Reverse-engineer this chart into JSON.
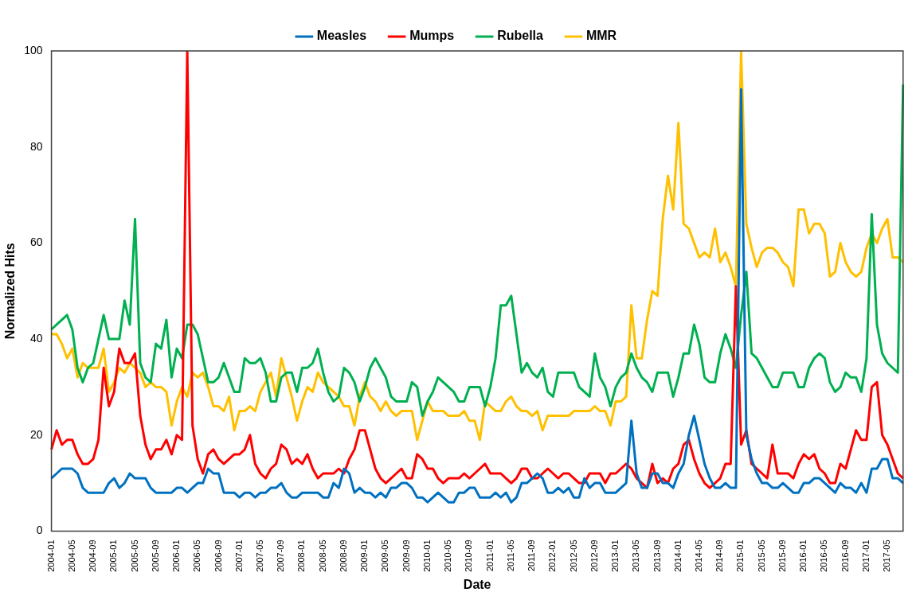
{
  "chart_data": {
    "type": "line",
    "xlabel": "Date",
    "ylabel": "Normalized Hits",
    "categories": [
      "2004-01",
      null,
      null,
      null,
      "2004-05",
      null,
      null,
      null,
      "2004-09",
      null,
      null,
      null,
      "2005-01",
      null,
      null,
      null,
      "2005-05",
      null,
      null,
      null,
      "2005-09",
      null,
      null,
      null,
      "2006-01",
      null,
      null,
      null,
      "2006-05",
      null,
      null,
      null,
      "2006-09",
      null,
      null,
      null,
      "2007-01",
      null,
      null,
      null,
      "2007-05",
      null,
      null,
      null,
      "2007-09",
      null,
      null,
      null,
      "2008-01",
      null,
      null,
      null,
      "2008-05",
      null,
      null,
      null,
      "2008-09",
      null,
      null,
      null,
      "2009-01",
      null,
      null,
      null,
      "2009-05",
      null,
      null,
      null,
      "2009-09",
      null,
      null,
      null,
      "2010-01",
      null,
      null,
      null,
      "2010-05",
      null,
      null,
      null,
      "2010-09",
      null,
      null,
      null,
      "2011-01",
      null,
      null,
      null,
      "2011-05",
      null,
      null,
      null,
      "2011-09",
      null,
      null,
      null,
      "2012-01",
      null,
      null,
      null,
      "2012-05",
      null,
      null,
      null,
      "2012-09",
      null,
      null,
      null,
      "2013-01",
      null,
      null,
      null,
      "2013-05",
      null,
      null,
      null,
      "2013-09",
      null,
      null,
      null,
      "2014-01",
      null,
      null,
      null,
      "2014-05",
      null,
      null,
      null,
      "2014-09",
      null,
      null,
      null,
      "2015-01",
      null,
      null,
      null,
      "2015-05",
      null,
      null,
      null,
      "2015-09",
      null,
      null,
      null,
      "2016-01",
      null,
      null,
      null,
      "2016-05",
      null,
      null,
      null,
      "2016-09",
      null,
      null,
      null,
      "2017-01",
      null,
      null,
      null,
      "2017-05",
      null,
      null,
      null
    ],
    "series": [
      {
        "name": "Measles",
        "color": "#0070c0",
        "values": [
          11,
          12,
          13,
          13,
          13,
          12,
          9,
          8,
          8,
          8,
          8,
          10,
          11,
          9,
          10,
          12,
          11,
          11,
          11,
          9,
          8,
          8,
          8,
          8,
          9,
          9,
          8,
          9,
          10,
          10,
          13,
          12,
          12,
          8,
          8,
          8,
          7,
          8,
          8,
          7,
          8,
          8,
          9,
          9,
          10,
          8,
          7,
          7,
          8,
          8,
          8,
          8,
          7,
          7,
          10,
          9,
          13,
          12,
          8,
          9,
          8,
          8,
          7,
          8,
          7,
          9,
          9,
          10,
          10,
          9,
          7,
          7,
          6,
          7,
          8,
          7,
          6,
          6,
          8,
          8,
          9,
          9,
          7,
          7,
          7,
          8,
          7,
          8,
          6,
          7,
          10,
          10,
          11,
          12,
          11,
          8,
          8,
          9,
          8,
          9,
          7,
          7,
          11,
          9,
          10,
          10,
          8,
          8,
          8,
          9,
          10,
          23,
          12,
          9,
          9,
          12,
          12,
          10,
          10,
          9,
          12,
          14,
          20,
          24,
          19,
          14,
          11,
          9,
          9,
          10,
          9,
          9,
          92,
          20,
          15,
          12,
          10,
          10,
          9,
          9,
          10,
          9,
          8,
          8,
          10,
          10,
          11,
          11,
          10,
          9,
          8,
          10,
          9,
          9,
          8,
          10,
          8,
          13,
          13,
          15,
          15,
          11,
          11,
          10
        ]
      },
      {
        "name": "Mumps",
        "color": "#ff0000",
        "values": [
          17,
          21,
          18,
          19,
          19,
          16,
          14,
          14,
          15,
          19,
          34,
          26,
          29,
          38,
          35,
          35,
          37,
          24,
          18,
          15,
          17,
          17,
          19,
          16,
          20,
          19,
          100,
          22,
          15,
          12,
          16,
          17,
          15,
          14,
          15,
          16,
          16,
          17,
          20,
          14,
          12,
          11,
          13,
          14,
          18,
          17,
          14,
          15,
          14,
          16,
          13,
          11,
          12,
          12,
          12,
          13,
          12,
          15,
          17,
          21,
          21,
          17,
          13,
          11,
          10,
          11,
          12,
          13,
          11,
          11,
          16,
          15,
          13,
          13,
          11,
          10,
          11,
          11,
          11,
          12,
          11,
          12,
          13,
          14,
          12,
          12,
          12,
          11,
          10,
          11,
          13,
          13,
          11,
          11,
          12,
          13,
          12,
          11,
          12,
          12,
          11,
          10,
          10,
          12,
          12,
          12,
          10,
          12,
          12,
          13,
          14,
          13,
          11,
          10,
          9,
          14,
          10,
          11,
          10,
          13,
          14,
          18,
          19,
          15,
          12,
          10,
          9,
          10,
          11,
          14,
          14,
          51,
          18,
          21,
          14,
          13,
          12,
          11,
          18,
          12,
          12,
          12,
          11,
          14,
          16,
          15,
          16,
          13,
          12,
          10,
          10,
          14,
          13,
          17,
          21,
          19,
          19,
          30,
          31,
          20,
          18,
          15,
          12,
          11
        ]
      },
      {
        "name": "Rubella",
        "color": "#00b050",
        "values": [
          42,
          43,
          44,
          45,
          42,
          34,
          31,
          34,
          35,
          40,
          45,
          40,
          40,
          40,
          48,
          43,
          65,
          35,
          32,
          31,
          39,
          38,
          44,
          32,
          38,
          36,
          43,
          43,
          41,
          36,
          31,
          31,
          32,
          35,
          32,
          29,
          29,
          36,
          35,
          35,
          36,
          33,
          27,
          27,
          32,
          33,
          33,
          29,
          34,
          34,
          35,
          38,
          33,
          29,
          27,
          28,
          34,
          33,
          31,
          27,
          30,
          34,
          36,
          34,
          32,
          28,
          27,
          27,
          27,
          31,
          30,
          24,
          27,
          29,
          32,
          31,
          30,
          29,
          27,
          27,
          30,
          30,
          30,
          26,
          30,
          36,
          47,
          47,
          49,
          41,
          33,
          35,
          33,
          32,
          34,
          29,
          28,
          33,
          33,
          33,
          33,
          30,
          29,
          28,
          37,
          32,
          30,
          26,
          30,
          32,
          33,
          37,
          34,
          32,
          31,
          29,
          33,
          33,
          33,
          28,
          32,
          37,
          37,
          43,
          39,
          32,
          31,
          31,
          37,
          41,
          38,
          34,
          45,
          54,
          37,
          36,
          34,
          32,
          30,
          30,
          33,
          33,
          33,
          30,
          30,
          34,
          36,
          37,
          36,
          31,
          29,
          30,
          33,
          32,
          32,
          29,
          36,
          66,
          43,
          37,
          35,
          34,
          33,
          93
        ]
      },
      {
        "name": "MMR",
        "color": "#ffc000",
        "values": [
          41,
          41,
          39,
          36,
          38,
          32,
          35,
          34,
          34,
          34,
          38,
          29,
          31,
          34,
          33,
          35,
          34,
          33,
          30,
          31,
          30,
          30,
          29,
          22,
          27,
          30,
          28,
          33,
          32,
          33,
          30,
          26,
          26,
          25,
          28,
          21,
          25,
          25,
          26,
          25,
          29,
          31,
          33,
          28,
          36,
          32,
          28,
          23,
          27,
          30,
          29,
          33,
          31,
          30,
          29,
          28,
          26,
          26,
          22,
          28,
          31,
          28,
          27,
          25,
          27,
          25,
          24,
          25,
          25,
          25,
          19,
          23,
          27,
          25,
          25,
          25,
          24,
          24,
          24,
          25,
          23,
          23,
          19,
          27,
          26,
          25,
          25,
          27,
          28,
          26,
          25,
          25,
          24,
          25,
          21,
          24,
          24,
          24,
          24,
          24,
          25,
          25,
          25,
          25,
          26,
          25,
          25,
          22,
          27,
          27,
          28,
          47,
          36,
          36,
          44,
          50,
          49,
          65,
          74,
          67,
          85,
          64,
          63,
          60,
          57,
          58,
          57,
          63,
          56,
          58,
          55,
          51,
          100,
          64,
          59,
          55,
          58,
          59,
          59,
          58,
          56,
          55,
          51,
          67,
          67,
          62,
          64,
          64,
          62,
          53,
          54,
          60,
          56,
          54,
          53,
          54,
          59,
          62,
          60,
          63,
          65,
          57,
          57,
          56
        ]
      }
    ],
    "ylim": [
      0,
      100
    ],
    "yticks": [
      0,
      20,
      40,
      60,
      80,
      100
    ],
    "grid": false,
    "legend": "top",
    "marker": "none",
    "line_style": "solid"
  }
}
